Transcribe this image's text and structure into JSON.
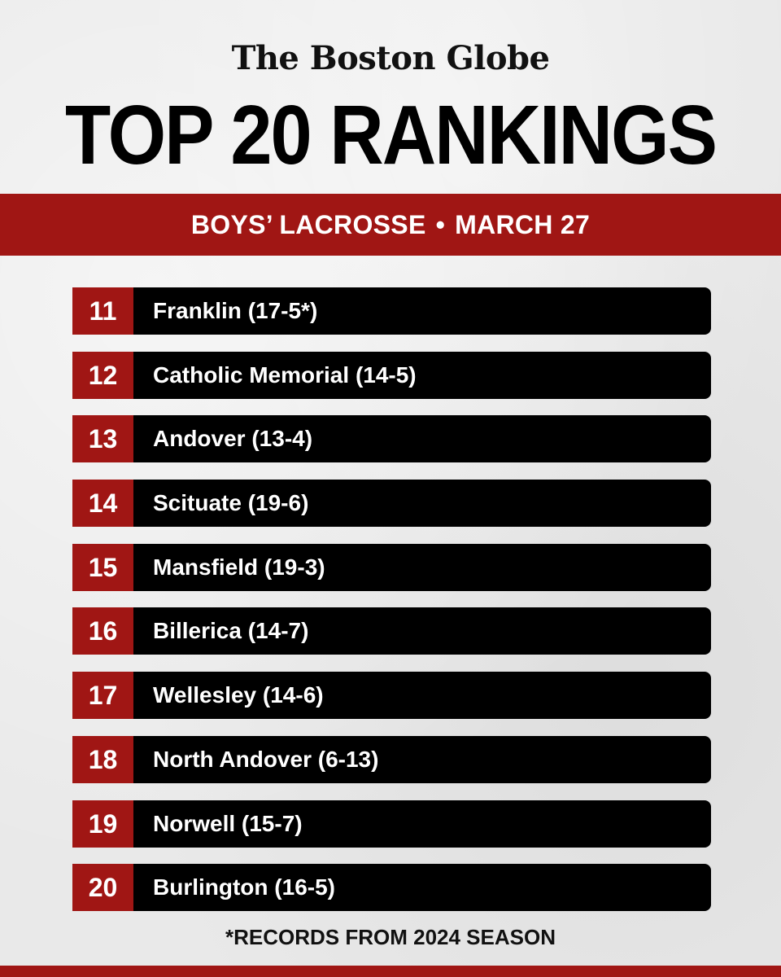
{
  "header": {
    "masthead": "The Boston Globe",
    "title": "TOP 20 RANKINGS"
  },
  "banner": {
    "sport": "BOYS’ LACROSSE",
    "separator": "•",
    "date": "MARCH 27"
  },
  "rankings": [
    {
      "rank": "11",
      "team": "Franklin (17-5*)"
    },
    {
      "rank": "12",
      "team": "Catholic Memorial (14-5)"
    },
    {
      "rank": "13",
      "team": "Andover (13-4)"
    },
    {
      "rank": "14",
      "team": "Scituate (19-6)"
    },
    {
      "rank": "15",
      "team": "Mansfield (19-3)"
    },
    {
      "rank": "16",
      "team": "Billerica (14-7)"
    },
    {
      "rank": "17",
      "team": "Wellesley (14-6)"
    },
    {
      "rank": "18",
      "team": "North Andover (6-13)"
    },
    {
      "rank": "19",
      "team": "Norwell (15-7)"
    },
    {
      "rank": "20",
      "team": "Burlington (16-5)"
    }
  ],
  "footnote": "*RECORDS FROM 2024 SEASON",
  "colors": {
    "accent_red": "#a01614",
    "row_black": "#000000",
    "background": "#e9e9e9"
  }
}
